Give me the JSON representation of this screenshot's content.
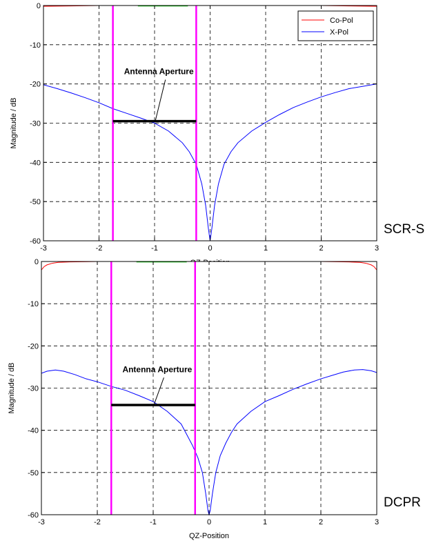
{
  "chart_data": [
    {
      "type": "line",
      "panel_label": "SCR-S",
      "xlabel": "QZ-Position",
      "ylabel": "Magnitude / dB",
      "xlim": [
        -3,
        3
      ],
      "ylim": [
        -60,
        0
      ],
      "xticks": [
        "-3",
        "-2",
        "-1",
        "0",
        "1",
        "2",
        "3"
      ],
      "yticks": [
        "0",
        "-10",
        "-20",
        "-30",
        "-40",
        "-50",
        "-60"
      ],
      "grid": true,
      "legend_position": "top-right",
      "legend": [
        "Co-Pol",
        "X-Pol"
      ],
      "series": [
        {
          "name": "Co-Pol",
          "color": "#ff0000",
          "x": [
            -3,
            -2.5,
            -2,
            -1.5,
            -1,
            -0.5,
            0,
            0.5,
            1,
            1.5,
            2,
            2.5,
            3
          ],
          "y": [
            -0.2,
            -0.1,
            0,
            0,
            0,
            0,
            0,
            0,
            0,
            0,
            0,
            -0.1,
            -0.2
          ]
        },
        {
          "name": "X-Pol",
          "color": "#0000ff",
          "x": [
            -3,
            -2.75,
            -2.5,
            -2.25,
            -2,
            -1.75,
            -1.5,
            -1.25,
            -1,
            -0.75,
            -0.5,
            -0.375,
            -0.25,
            -0.15,
            -0.08,
            -0.03,
            0,
            0.03,
            0.08,
            0.15,
            0.25,
            0.375,
            0.5,
            0.75,
            1,
            1.25,
            1.5,
            1.75,
            2,
            2.25,
            2.5,
            2.75,
            3
          ],
          "y": [
            -20.2,
            -21.2,
            -22.3,
            -23.5,
            -24.8,
            -26.3,
            -27.5,
            -28.7,
            -30,
            -32,
            -35,
            -37.3,
            -40.5,
            -45.5,
            -51,
            -57,
            -60,
            -57,
            -51,
            -45.5,
            -40.5,
            -37.3,
            -35,
            -32,
            -29.8,
            -27.8,
            -26,
            -24.6,
            -23.3,
            -22.2,
            -21.2,
            -20.6,
            -20
          ]
        }
      ],
      "markers": [
        {
          "type": "vline",
          "x": -1.75,
          "color": "#ff00ff"
        },
        {
          "type": "vline",
          "x": -0.25,
          "color": "#ff00ff"
        },
        {
          "type": "hline",
          "x_start": -1.75,
          "x_end": -0.25,
          "y": -29.5,
          "color": "#000000"
        },
        {
          "type": "hline-top",
          "x_start": -1.3,
          "x_end": -0.4,
          "y": 0,
          "color": "#00c000"
        }
      ],
      "annotation": {
        "text": "Antenna Aperture",
        "x": -1.55,
        "y": -17.5,
        "arrow_to": [
          -1.0,
          -29.5
        ]
      }
    },
    {
      "type": "line",
      "panel_label": "DCPR",
      "xlabel": "QZ-Position",
      "ylabel": "Magnitude / dB",
      "xlim": [
        -3,
        3
      ],
      "ylim": [
        -60,
        0
      ],
      "xticks": [
        "-3",
        "-2",
        "-1",
        "0",
        "1",
        "2",
        "3"
      ],
      "yticks": [
        "0",
        "-10",
        "-20",
        "-30",
        "-40",
        "-50",
        "-60"
      ],
      "grid": true,
      "series": [
        {
          "name": "Co-Pol",
          "color": "#ff0000",
          "x": [
            -3,
            -2.95,
            -2.9,
            -2.8,
            -2.7,
            -2.5,
            -2,
            -1.5,
            -1,
            -0.5,
            0,
            0.5,
            1,
            1.5,
            2,
            2.5,
            2.7,
            2.8,
            2.9,
            2.95,
            3
          ],
          "y": [
            -2,
            -1.2,
            -0.8,
            -0.4,
            -0.2,
            -0.1,
            0,
            0,
            0,
            0,
            0,
            0,
            0,
            0,
            0,
            -0.1,
            -0.2,
            -0.4,
            -0.8,
            -1.2,
            -2
          ]
        },
        {
          "name": "X-Pol",
          "color": "#0000ff",
          "x": [
            -3,
            -2.9,
            -2.75,
            -2.6,
            -2.4,
            -2.2,
            -2,
            -1.75,
            -1.5,
            -1.25,
            -1,
            -0.75,
            -0.5,
            -0.4,
            -0.3,
            -0.2,
            -0.12,
            -0.06,
            -0.02,
            0,
            0.02,
            0.06,
            0.12,
            0.2,
            0.3,
            0.4,
            0.5,
            0.75,
            1,
            1.25,
            1.5,
            1.75,
            2,
            2.2,
            2.4,
            2.6,
            2.75,
            2.9,
            3
          ],
          "y": [
            -26.5,
            -26,
            -25.7,
            -26,
            -26.8,
            -27.8,
            -28.5,
            -29.6,
            -30.5,
            -31.8,
            -33.2,
            -35.5,
            -38.5,
            -41,
            -43.5,
            -46.5,
            -50,
            -55,
            -59,
            -60,
            -59,
            -55,
            -50,
            -46,
            -43,
            -40.5,
            -38.5,
            -35.5,
            -33.2,
            -31.8,
            -30.3,
            -29,
            -27.8,
            -27,
            -26.2,
            -25.7,
            -25.6,
            -25.9,
            -26.3
          ]
        }
      ],
      "markers": [
        {
          "type": "vline",
          "x": -1.75,
          "color": "#ff00ff"
        },
        {
          "type": "vline",
          "x": -0.25,
          "color": "#ff00ff"
        },
        {
          "type": "hline",
          "x_start": -1.75,
          "x_end": -0.25,
          "y": -34,
          "color": "#000000"
        },
        {
          "type": "hline-top",
          "x_start": -1.3,
          "x_end": -0.4,
          "y": 0,
          "color": "#00c000"
        }
      ],
      "annotation": {
        "text": "Antenna Aperture",
        "x": -1.55,
        "y": -26.2,
        "arrow_to": [
          -1.0,
          -34
        ]
      }
    }
  ]
}
